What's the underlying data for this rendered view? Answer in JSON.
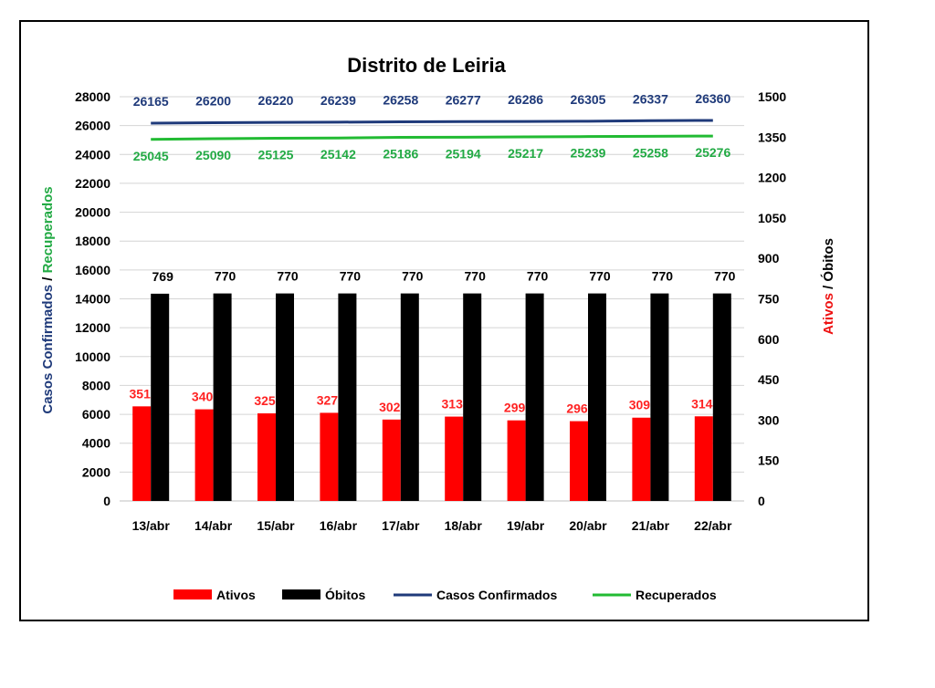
{
  "chart_data": {
    "type": "bar",
    "title": "Distrito de Leiria",
    "categories": [
      "13/abr",
      "14/abr",
      "15/abr",
      "16/abr",
      "17/abr",
      "18/abr",
      "19/abr",
      "20/abr",
      "21/abr",
      "22/abr"
    ],
    "left_axis": {
      "title_parts": [
        "Casos Confirmados",
        " / ",
        "Recuperados"
      ],
      "ylim": [
        0,
        28000
      ],
      "ticks": [
        0,
        2000,
        4000,
        6000,
        8000,
        10000,
        12000,
        14000,
        16000,
        18000,
        20000,
        22000,
        24000,
        26000,
        28000
      ]
    },
    "right_axis": {
      "title_parts": [
        "Ativos",
        " / ",
        "Óbitos"
      ],
      "ylim": [
        0,
        1500
      ],
      "ticks": [
        0,
        150,
        300,
        450,
        600,
        750,
        900,
        1050,
        1200,
        1350,
        1500
      ]
    },
    "series": [
      {
        "name": "Ativos",
        "kind": "bar",
        "axis": "right",
        "color": "#ff0000",
        "values": [
          351,
          340,
          325,
          327,
          302,
          313,
          299,
          296,
          309,
          314
        ]
      },
      {
        "name": "Óbitos",
        "kind": "bar",
        "axis": "right",
        "color": "#000000",
        "values": [
          769,
          770,
          770,
          770,
          770,
          770,
          770,
          770,
          770,
          770
        ]
      },
      {
        "name": "Casos Confirmados",
        "kind": "line",
        "axis": "left",
        "color": "#1f3a7a",
        "values": [
          26165,
          26200,
          26220,
          26239,
          26258,
          26277,
          26286,
          26305,
          26337,
          26360
        ]
      },
      {
        "name": "Recuperados",
        "kind": "line",
        "axis": "left",
        "color": "#22bb33",
        "values": [
          25045,
          25090,
          25125,
          25142,
          25186,
          25194,
          25217,
          25239,
          25258,
          25276
        ]
      }
    ],
    "colors": {
      "ativos_label": "#ff2222",
      "obitos_label": "#000000",
      "confirmados_label": "#1f3a7a",
      "recuperados_label": "#22aa44",
      "left_title_blue": "#1f3a7a",
      "left_title_green": "#22aa44",
      "right_title_red": "#ee1111",
      "right_title_black": "#000000"
    },
    "grid": true,
    "legend_position": "bottom"
  }
}
